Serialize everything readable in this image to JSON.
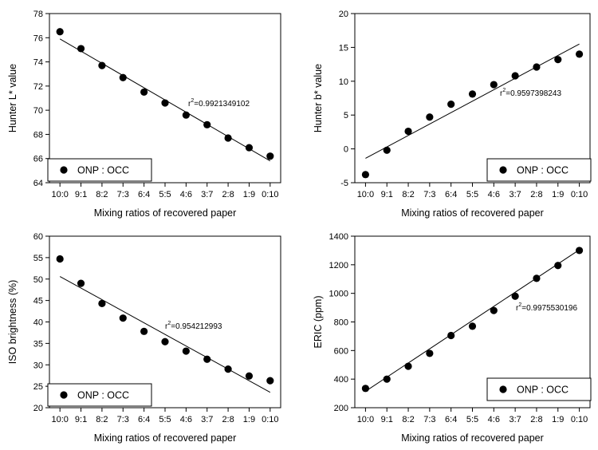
{
  "chart_data": [
    {
      "id": "a",
      "type": "scatter",
      "title": "",
      "xlabel": "Mixing ratios of recovered paper",
      "ylabel": "Hunter L* value",
      "ylim": [
        64,
        78
      ],
      "yticks": [
        64,
        66,
        68,
        70,
        72,
        74,
        76,
        78
      ],
      "categories": [
        "10:0",
        "9:1",
        "8:2",
        "7:3",
        "6:4",
        "5:5",
        "4:6",
        "3:7",
        "2:8",
        "1:9",
        "0:10"
      ],
      "series": [
        {
          "name": "ONP : OCC",
          "values": [
            76.5,
            75.1,
            73.7,
            72.7,
            71.5,
            70.6,
            69.6,
            68.8,
            67.7,
            66.9,
            66.2
          ]
        }
      ],
      "fit": {
        "start": 75.9,
        "end": 65.8,
        "r2_prefix": "r",
        "r2_sup": "2",
        "r2_value": "=0.9921349102"
      },
      "legend": {
        "label": "ONP : OCC",
        "position": "bottom-left"
      }
    },
    {
      "id": "b",
      "type": "scatter",
      "title": "",
      "xlabel": "Mixing ratios of recovered paper",
      "ylabel": "Hunter b* value",
      "ylim": [
        -5,
        20
      ],
      "yticks": [
        -5,
        0,
        5,
        10,
        15,
        20
      ],
      "categories": [
        "10:0",
        "9:1",
        "8:2",
        "7:3",
        "6:4",
        "5:5",
        "4:6",
        "3:7",
        "2:8",
        "1:9",
        "0:10"
      ],
      "series": [
        {
          "name": "ONP : OCC",
          "values": [
            -3.8,
            -0.2,
            2.6,
            4.7,
            6.6,
            8.1,
            9.5,
            10.8,
            12.1,
            13.2,
            14.0
          ]
        }
      ],
      "fit": {
        "start": -1.4,
        "end": 15.5,
        "r2_prefix": "r",
        "r2_sup": "2",
        "r2_value": "=0.9597398243"
      },
      "legend": {
        "label": "ONP : OCC",
        "position": "bottom-right"
      }
    },
    {
      "id": "c",
      "type": "scatter",
      "title": "",
      "xlabel": "Mixing ratios of recovered paper",
      "ylabel": "ISO brightness (%)",
      "ylim": [
        20,
        60
      ],
      "yticks": [
        20,
        25,
        30,
        35,
        40,
        45,
        50,
        55,
        60
      ],
      "categories": [
        "10:0",
        "9:1",
        "8:2",
        "7:3",
        "6:4",
        "5:5",
        "4:6",
        "3:7",
        "2:8",
        "1:9",
        "0:10"
      ],
      "series": [
        {
          "name": "ONP : OCC",
          "values": [
            54.7,
            49.0,
            44.3,
            40.9,
            37.8,
            35.4,
            33.2,
            31.3,
            29.0,
            27.4,
            26.3
          ]
        }
      ],
      "fit": {
        "start": 50.6,
        "end": 23.6,
        "r2_prefix": "r",
        "r2_sup": "2",
        "r2_value": "=0.954212993"
      },
      "legend": {
        "label": "ONP : OCC",
        "position": "bottom-left"
      }
    },
    {
      "id": "d",
      "type": "scatter",
      "title": "",
      "xlabel": "Mixing ratios of recovered paper",
      "ylabel": "ERIC (ppm)",
      "ylim": [
        200,
        1400
      ],
      "yticks": [
        200,
        400,
        600,
        800,
        1000,
        1200,
        1400
      ],
      "categories": [
        "10:0",
        "9:1",
        "8:2",
        "7:3",
        "6:4",
        "5:5",
        "4:6",
        "3:7",
        "2:8",
        "1:9",
        "0:10"
      ],
      "series": [
        {
          "name": "ONP : OCC",
          "values": [
            335,
            400,
            490,
            580,
            705,
            770,
            880,
            980,
            1105,
            1195,
            1300
          ]
        }
      ],
      "fit": {
        "start": 315,
        "end": 1305,
        "r2_prefix": "r",
        "r2_sup": "2",
        "r2_value": "=0.9975530196"
      },
      "legend": {
        "label": "ONP : OCC",
        "position": "bottom-right"
      }
    }
  ]
}
